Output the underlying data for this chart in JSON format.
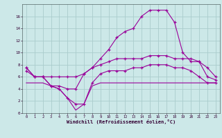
{
  "x": [
    0,
    1,
    2,
    3,
    4,
    5,
    6,
    7,
    8,
    9,
    10,
    11,
    12,
    13,
    14,
    15,
    16,
    17,
    18,
    19,
    20,
    21,
    22,
    23
  ],
  "line1": [
    7.5,
    6.0,
    6.0,
    6.0,
    6.0,
    6.0,
    6.0,
    6.5,
    7.5,
    9.0,
    10.5,
    12.5,
    13.5,
    14.0,
    16.0,
    17.0,
    17.0,
    17.0,
    15.0,
    10.0,
    8.5,
    8.5,
    6.0,
    5.5
  ],
  "line2": [
    7.5,
    6.0,
    6.0,
    4.5,
    4.5,
    4.0,
    4.0,
    6.5,
    7.5,
    8.0,
    8.5,
    9.0,
    9.0,
    9.0,
    9.0,
    9.5,
    9.5,
    9.5,
    9.0,
    9.0,
    9.0,
    8.5,
    7.5,
    6.0
  ],
  "line3": [
    7.0,
    6.0,
    6.0,
    4.5,
    4.0,
    2.5,
    1.5,
    1.5,
    5.0,
    6.5,
    7.0,
    7.0,
    7.0,
    7.5,
    7.5,
    8.0,
    8.0,
    8.0,
    7.5,
    7.5,
    7.0,
    6.0,
    5.0,
    5.0
  ],
  "line4": [
    5.0,
    5.0,
    5.0,
    4.5,
    4.0,
    2.5,
    0.5,
    1.5,
    4.5,
    5.0,
    5.0,
    5.0,
    5.0,
    5.0,
    5.0,
    5.0,
    5.0,
    5.0,
    5.0,
    5.0,
    5.0,
    5.0,
    5.0,
    5.0
  ],
  "line_color": "#990099",
  "bg_color": "#cce8e8",
  "grid_color": "#aacccc",
  "xlabel": "Windchill (Refroidissement éolien,°C)",
  "xlim": [
    0,
    23
  ],
  "ylim": [
    0,
    18
  ],
  "yticks": [
    0,
    2,
    4,
    6,
    8,
    10,
    12,
    14,
    16
  ],
  "xticks": [
    0,
    1,
    2,
    3,
    4,
    5,
    6,
    7,
    8,
    9,
    10,
    11,
    12,
    13,
    14,
    15,
    16,
    17,
    18,
    19,
    20,
    21,
    22,
    23
  ]
}
